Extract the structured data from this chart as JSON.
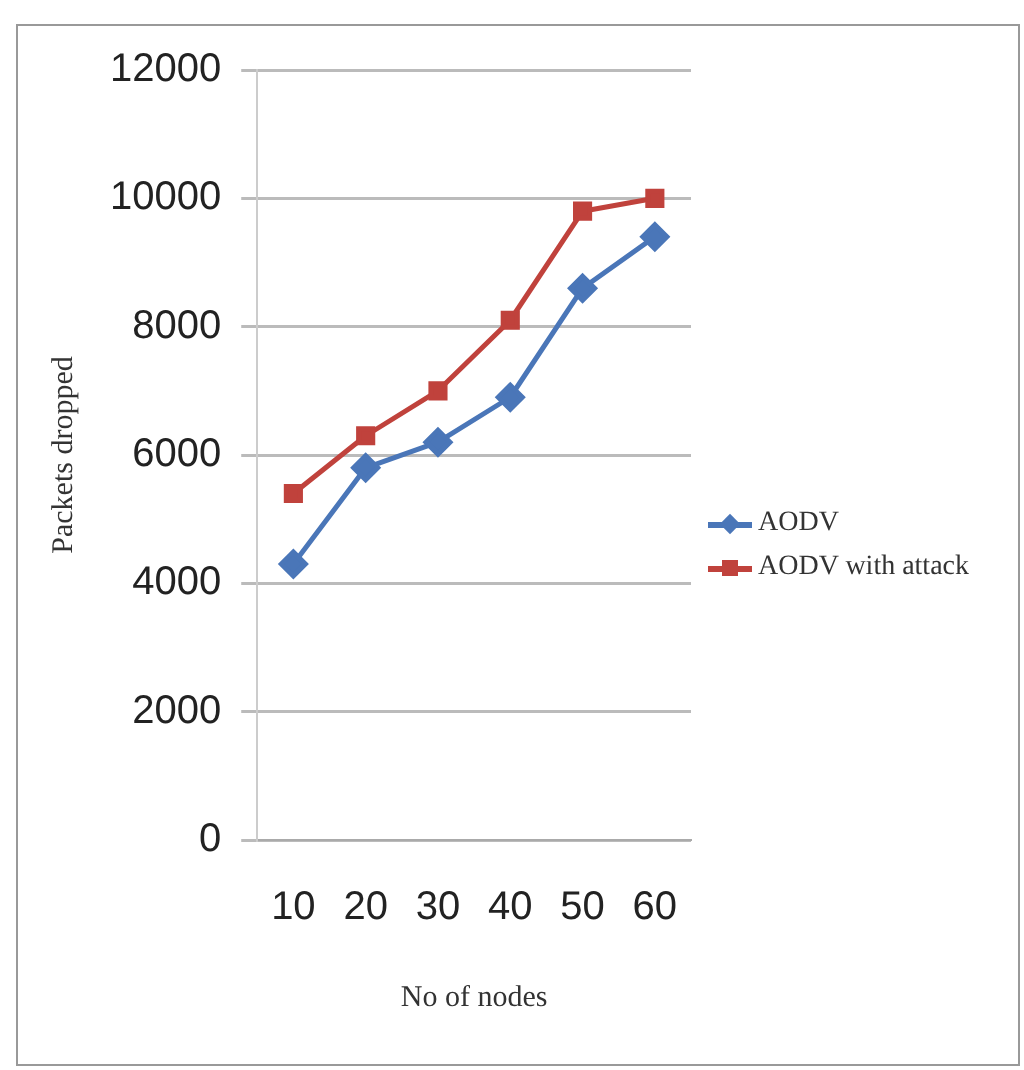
{
  "chart_data": {
    "type": "line",
    "xlabel": "No of nodes",
    "ylabel": "Packets dropped",
    "categories": [
      "10",
      "20",
      "30",
      "40",
      "50",
      "60"
    ],
    "series": [
      {
        "name": "AODV",
        "color": "#4a76b8",
        "marker": "diamond",
        "values": [
          4300,
          5800,
          6200,
          6900,
          8600,
          9400
        ]
      },
      {
        "name": "AODV with attack",
        "color": "#c0423c",
        "marker": "square",
        "values": [
          5400,
          6300,
          7000,
          8100,
          9800,
          10000
        ]
      }
    ],
    "ylim": [
      0,
      12000
    ],
    "yticks": [
      0,
      2000,
      4000,
      6000,
      8000,
      10000,
      12000
    ],
    "grid": "y",
    "legend": "right"
  }
}
